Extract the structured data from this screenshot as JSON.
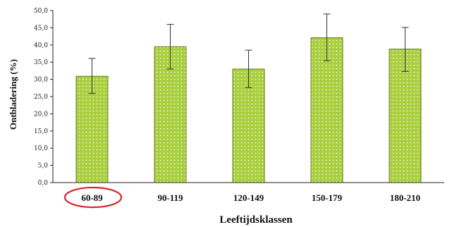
{
  "chart_data": {
    "type": "bar",
    "categories": [
      "60-89",
      "90-119",
      "120-149",
      "150-179",
      "180-210"
    ],
    "values": [
      30.9,
      39.5,
      33.0,
      42.1,
      38.8
    ],
    "error_low": [
      25.9,
      33.0,
      27.6,
      35.4,
      32.3
    ],
    "error_high": [
      36.1,
      46.0,
      38.5,
      49.0,
      45.1
    ],
    "xlabel": "Leeftijdsklassen",
    "ylabel": "Ontbladering (%)",
    "ylim": [
      0,
      50
    ],
    "yticks": [
      "0,0",
      "5,0",
      "10,0",
      "15,0",
      "20,0",
      "25,0",
      "30,0",
      "35,0",
      "40,0",
      "45,0",
      "50,0"
    ],
    "grid": false,
    "highlighted_category": "60-89",
    "colors": {
      "bar_fill": "#a9cf3e",
      "bar_dots": "#f4f9dc",
      "bar_edge": "#5f7d1c",
      "highlight_ellipse": "#d9262c"
    }
  }
}
